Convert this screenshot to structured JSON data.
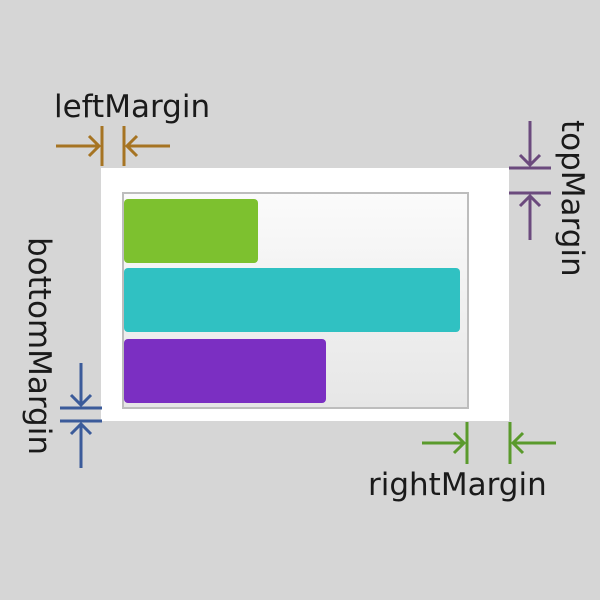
{
  "labels": {
    "left": "leftMargin",
    "top": "topMargin",
    "bottom": "bottomMargin",
    "right": "rightMargin"
  },
  "colors": {
    "background": "#d6d6d6",
    "card": "#ffffff",
    "plot_border": "#bdbdbd",
    "left_arrow": "#a67423",
    "top_arrow": "#6b4a7d",
    "bottom_arrow": "#3b5b9a",
    "right_arrow": "#5a9a2c"
  },
  "bars": [
    {
      "color": "#7dc12f",
      "value": 0.39
    },
    {
      "color": "#30c1c2",
      "value": 0.98
    },
    {
      "color": "#7b2fc2",
      "value": 0.59
    }
  ]
}
